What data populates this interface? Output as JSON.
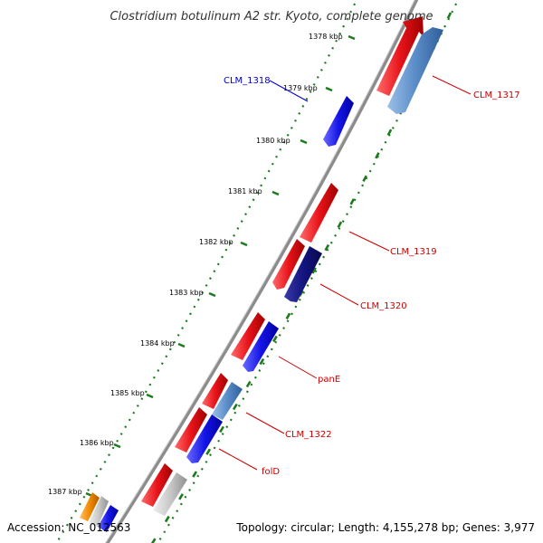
{
  "title": "Clostridium botulinum A2 str. Kyoto, complete genome",
  "footer": {
    "accession": "Accession: NC_012563",
    "summary": "Topology: circular; Length: 4,155,278 bp; Genes: 3,977"
  },
  "colors": {
    "forward_gene": "#e8141a",
    "reverse_gene": "#1515e6",
    "reverse_gene_dark": "#141480",
    "reverse_gene_light": "#5a8cc8",
    "label_forward": "#cc0000",
    "label_reverse": "#0000cc",
    "tick": "#1d7a1d",
    "backbone": "#8c8c8c",
    "hypothetical": "#c8c8c8",
    "misc": "#f08a00"
  },
  "ticks": [
    "1378 kbp",
    "1379 kbp",
    "1380 kbp",
    "1381 kbp",
    "1382 kbp",
    "1383 kbp",
    "1384 kbp",
    "1385 kbp",
    "1386 kbp",
    "1387 kbp"
  ],
  "gene_labels": [
    "CLM_1317",
    "CLM_1318",
    "CLM_1319",
    "CLM_1320",
    "panE",
    "CLM_1322",
    "folD"
  ]
}
